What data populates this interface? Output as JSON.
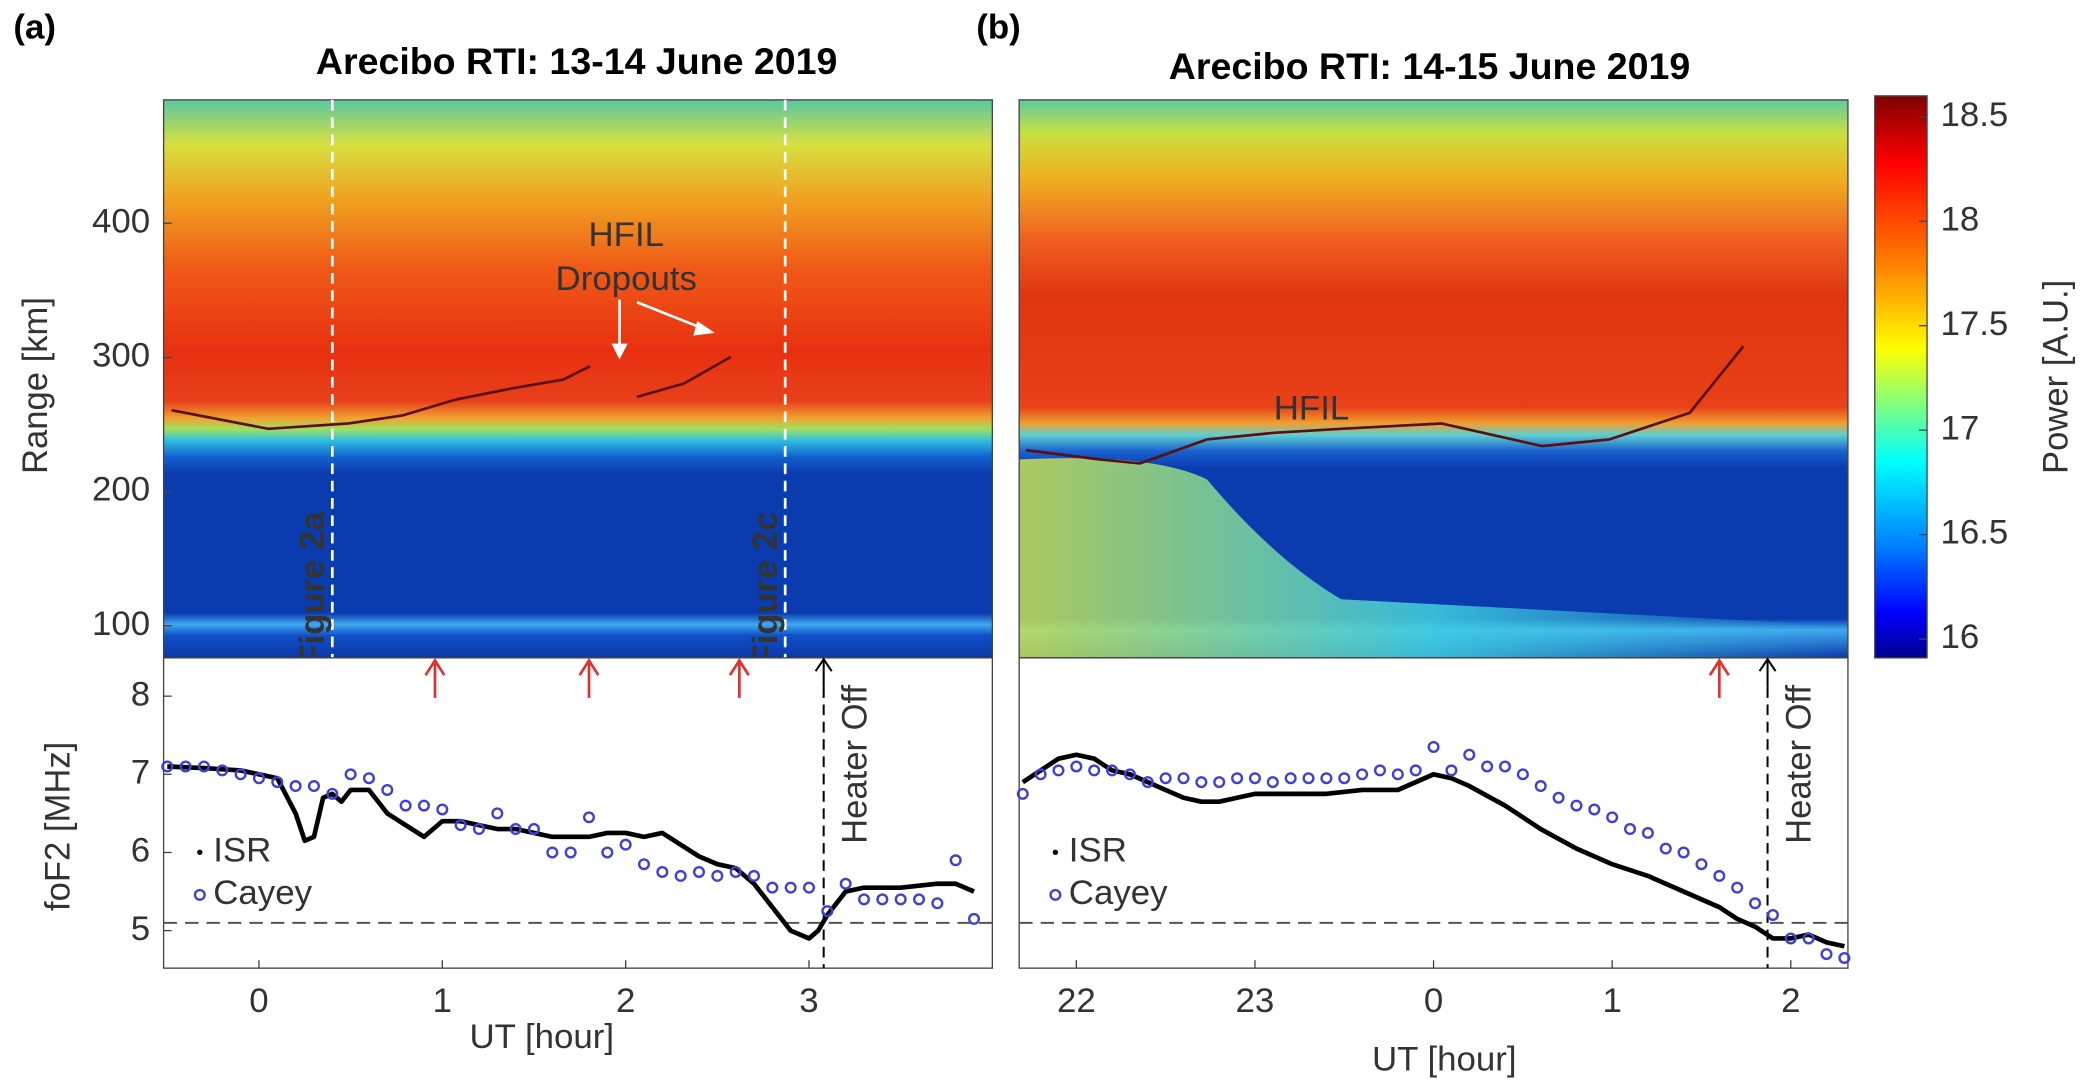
{
  "chart_data": [
    {
      "type": "heatmap",
      "panel_label": "(a)",
      "title": "Arecibo RTI: 13-14 June 2019",
      "ylabel": "Range [km]",
      "xlim": [
        -0.52,
        4.0
      ],
      "ylim": [
        76,
        492
      ],
      "yticks": [
        100,
        200,
        300,
        400
      ],
      "markers": [
        {
          "label": "Figure 2a",
          "x": 0.4
        },
        {
          "label": "Figure 2c",
          "x": 2.87
        }
      ],
      "annotation": [
        "HFIL",
        "Dropouts"
      ]
    },
    {
      "type": "line",
      "ylabel": "foF2 [MHz]",
      "xlabel": "UT [hour]",
      "xlim": [
        -0.52,
        4.0
      ],
      "ylim": [
        4.52,
        8.49
      ],
      "xticks": [
        0,
        1,
        2,
        3
      ],
      "yticks": [
        5,
        6,
        7,
        8
      ],
      "hline": 5.1,
      "event_x": 3.08,
      "event_label": "Heater Off",
      "arrows_x": [
        0.96,
        1.8,
        2.62
      ],
      "series": [
        {
          "name": "ISR",
          "color": "#000000",
          "marker": "dot",
          "x": [
            -0.5,
            -0.3,
            -0.1,
            0.0,
            0.1,
            0.2,
            0.25,
            0.3,
            0.35,
            0.4,
            0.45,
            0.5,
            0.6,
            0.7,
            0.8,
            0.9,
            1.0,
            1.1,
            1.2,
            1.3,
            1.4,
            1.5,
            1.6,
            1.7,
            1.8,
            1.9,
            2.0,
            2.1,
            2.2,
            2.3,
            2.4,
            2.5,
            2.6,
            2.7,
            2.8,
            2.9,
            3.0,
            3.05,
            3.1,
            3.2,
            3.3,
            3.5,
            3.7,
            3.8,
            3.9
          ],
          "values": [
            7.1,
            7.08,
            7.05,
            7.0,
            6.95,
            6.5,
            6.15,
            6.2,
            6.7,
            6.75,
            6.65,
            6.8,
            6.8,
            6.5,
            6.35,
            6.2,
            6.4,
            6.4,
            6.35,
            6.3,
            6.3,
            6.25,
            6.2,
            6.2,
            6.2,
            6.25,
            6.25,
            6.2,
            6.25,
            6.1,
            5.95,
            5.85,
            5.8,
            5.6,
            5.3,
            5.0,
            4.9,
            5.0,
            5.2,
            5.5,
            5.55,
            5.55,
            5.6,
            5.6,
            5.5
          ]
        },
        {
          "name": "Cayey",
          "color": "#4040d8",
          "marker": "circle",
          "x": [
            -0.5,
            -0.4,
            -0.3,
            -0.2,
            -0.1,
            0.0,
            0.1,
            0.2,
            0.3,
            0.4,
            0.5,
            0.6,
            0.7,
            0.8,
            0.9,
            1.0,
            1.1,
            1.2,
            1.3,
            1.4,
            1.5,
            1.6,
            1.7,
            1.8,
            1.9,
            2.0,
            2.1,
            2.2,
            2.3,
            2.4,
            2.5,
            2.6,
            2.7,
            2.8,
            2.9,
            3.0,
            3.1,
            3.2,
            3.3,
            3.4,
            3.5,
            3.6,
            3.7,
            3.8,
            3.9
          ],
          "values": [
            7.1,
            7.1,
            7.1,
            7.05,
            7.0,
            6.95,
            6.9,
            6.85,
            6.85,
            6.75,
            7.0,
            6.95,
            6.8,
            6.6,
            6.6,
            6.55,
            6.35,
            6.3,
            6.5,
            6.3,
            6.3,
            6.0,
            6.0,
            6.45,
            6.0,
            6.1,
            5.85,
            5.75,
            5.7,
            5.75,
            5.7,
            5.75,
            5.7,
            5.55,
            5.55,
            5.55,
            5.25,
            5.6,
            5.4,
            5.4,
            5.4,
            5.4,
            5.35,
            5.9,
            5.15
          ]
        }
      ]
    },
    {
      "type": "heatmap",
      "panel_label": "(b)",
      "title": "Arecibo RTI: 14-15 June 2019",
      "xlim": [
        21.68,
        26.32
      ],
      "ylim": [
        76,
        492
      ],
      "annotation": [
        "HFIL"
      ]
    },
    {
      "type": "line",
      "xlabel": "UT [hour]",
      "xlim": [
        21.68,
        26.32
      ],
      "ylim": [
        4.52,
        8.49
      ],
      "xticks": [
        22,
        23,
        {
          "value": 24,
          "label": "0"
        },
        {
          "value": 25,
          "label": "1"
        },
        {
          "value": 26,
          "label": "2"
        }
      ],
      "hline": 5.1,
      "event_x": 25.87,
      "event_label": "Heater Off",
      "arrows_x": [
        25.6
      ],
      "series": [
        {
          "name": "ISR",
          "color": "#000000",
          "marker": "dot",
          "x": [
            21.7,
            21.8,
            21.9,
            22.0,
            22.1,
            22.2,
            22.3,
            22.4,
            22.5,
            22.6,
            22.7,
            22.8,
            22.9,
            23.0,
            23.2,
            23.4,
            23.6,
            23.8,
            24.0,
            24.1,
            24.2,
            24.4,
            24.6,
            24.8,
            25.0,
            25.2,
            25.4,
            25.6,
            25.7,
            25.8,
            25.9,
            26.0,
            26.1,
            26.2,
            26.3
          ],
          "values": [
            6.9,
            7.05,
            7.2,
            7.25,
            7.2,
            7.05,
            7.0,
            6.9,
            6.8,
            6.7,
            6.65,
            6.65,
            6.7,
            6.75,
            6.75,
            6.75,
            6.8,
            6.8,
            7.0,
            6.95,
            6.85,
            6.6,
            6.3,
            6.05,
            5.85,
            5.7,
            5.5,
            5.3,
            5.15,
            5.05,
            4.9,
            4.9,
            4.95,
            4.85,
            4.8
          ]
        },
        {
          "name": "Cayey",
          "color": "#4040d8",
          "marker": "circle",
          "x": [
            21.7,
            21.8,
            21.9,
            22.0,
            22.1,
            22.2,
            22.3,
            22.4,
            22.5,
            22.6,
            22.7,
            22.8,
            22.9,
            23.0,
            23.1,
            23.2,
            23.3,
            23.4,
            23.5,
            23.6,
            23.7,
            23.8,
            23.9,
            24.0,
            24.1,
            24.2,
            24.3,
            24.4,
            24.5,
            24.6,
            24.7,
            24.8,
            24.9,
            25.0,
            25.1,
            25.2,
            25.3,
            25.4,
            25.5,
            25.6,
            25.7,
            25.8,
            25.9,
            26.0,
            26.1,
            26.2,
            26.3
          ],
          "values": [
            6.75,
            7.0,
            7.05,
            7.1,
            7.05,
            7.05,
            7.0,
            6.9,
            6.95,
            6.95,
            6.9,
            6.9,
            6.95,
            6.95,
            6.9,
            6.95,
            6.95,
            6.95,
            6.95,
            7.0,
            7.05,
            7.0,
            7.05,
            7.35,
            7.05,
            7.25,
            7.1,
            7.1,
            7.0,
            6.85,
            6.7,
            6.6,
            6.55,
            6.45,
            6.3,
            6.25,
            6.05,
            6.0,
            5.85,
            5.7,
            5.55,
            5.35,
            5.2,
            4.9,
            4.9,
            4.7,
            4.65
          ]
        }
      ]
    },
    {
      "type": "colorbar",
      "label": "Power [A.U.]",
      "ylim": [
        15.91,
        18.6
      ],
      "yticks": [
        16,
        16.5,
        17,
        17.5,
        18,
        18.5
      ]
    }
  ]
}
